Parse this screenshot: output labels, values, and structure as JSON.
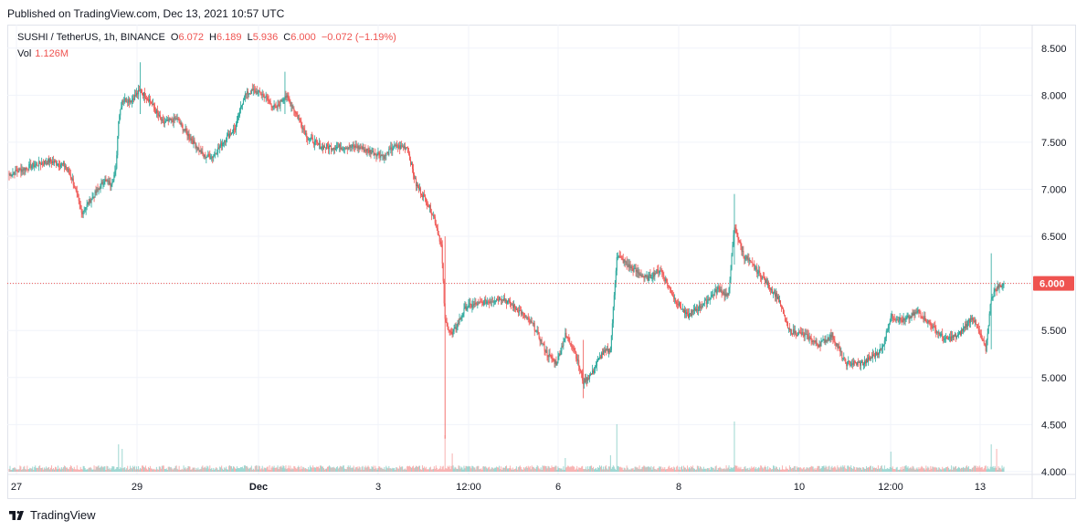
{
  "published": "Published on TradingView.com, Dec 13, 2021 10:57 UTC",
  "legend": {
    "symbol": "SUSHI / TetherUS, 1h, BINANCE",
    "open_label": "O",
    "open": "6.072",
    "high_label": "H",
    "high": "6.189",
    "low_label": "L",
    "low": "5.936",
    "close_label": "C",
    "close": "6.000",
    "change": "−0.072 (−1.19%)"
  },
  "volume": {
    "label": "Vol",
    "value": "1.126M"
  },
  "footer": {
    "brand": "TradingView",
    "logo_icon": "tradingview-logo-icon"
  },
  "colors": {
    "up": "#26a69a",
    "down": "#ef5350",
    "grid": "#f0f3fa",
    "price_line": "#ef5350"
  },
  "chart_data": {
    "type": "candlestick",
    "symbol": "SUSHI / TetherUS",
    "interval": "1h",
    "exchange": "BINANCE",
    "y_axis_ticks": [
      "8.500",
      "8.000",
      "7.500",
      "7.000",
      "6.500",
      "6.000",
      "5.500",
      "5.000",
      "4.500",
      "4.000"
    ],
    "ylim": [
      3.97,
      8.75
    ],
    "x_axis_ticks": [
      "27",
      "29",
      "Dec",
      "3",
      "12:00",
      "6",
      "8",
      "10",
      "12:00",
      "13"
    ],
    "last_price_label": "6.000",
    "grid": true,
    "approx_close_path": [
      {
        "i": 0,
        "close": 7.15
      },
      {
        "i": 10,
        "close": 7.2
      },
      {
        "i": 25,
        "close": 7.25
      },
      {
        "i": 45,
        "close": 7.3
      },
      {
        "i": 62,
        "close": 7.25
      },
      {
        "i": 70,
        "close": 7.1
      },
      {
        "i": 80,
        "close": 6.75
      },
      {
        "i": 95,
        "close": 6.95
      },
      {
        "i": 105,
        "close": 7.1
      },
      {
        "i": 112,
        "close": 7.05
      },
      {
        "i": 118,
        "close": 7.2
      },
      {
        "i": 121,
        "close": 7.75
      },
      {
        "i": 125,
        "close": 7.95
      },
      {
        "i": 135,
        "close": 7.95
      },
      {
        "i": 145,
        "close": 8.05
      },
      {
        "i": 155,
        "close": 7.95
      },
      {
        "i": 170,
        "close": 7.7
      },
      {
        "i": 185,
        "close": 7.75
      },
      {
        "i": 200,
        "close": 7.55
      },
      {
        "i": 215,
        "close": 7.35
      },
      {
        "i": 225,
        "close": 7.35
      },
      {
        "i": 240,
        "close": 7.55
      },
      {
        "i": 250,
        "close": 7.65
      },
      {
        "i": 260,
        "close": 8.0
      },
      {
        "i": 270,
        "close": 8.05
      },
      {
        "i": 282,
        "close": 8.0
      },
      {
        "i": 295,
        "close": 7.85
      },
      {
        "i": 305,
        "close": 8.0
      },
      {
        "i": 315,
        "close": 7.85
      },
      {
        "i": 330,
        "close": 7.55
      },
      {
        "i": 345,
        "close": 7.45
      },
      {
        "i": 365,
        "close": 7.45
      },
      {
        "i": 385,
        "close": 7.45
      },
      {
        "i": 400,
        "close": 7.4
      },
      {
        "i": 415,
        "close": 7.35
      },
      {
        "i": 425,
        "close": 7.45
      },
      {
        "i": 440,
        "close": 7.45
      },
      {
        "i": 450,
        "close": 7.05
      },
      {
        "i": 460,
        "close": 6.9
      },
      {
        "i": 470,
        "close": 6.7
      },
      {
        "i": 478,
        "close": 6.4
      },
      {
        "i": 482,
        "close": 5.6
      },
      {
        "i": 490,
        "close": 5.45
      },
      {
        "i": 505,
        "close": 5.75
      },
      {
        "i": 525,
        "close": 5.8
      },
      {
        "i": 545,
        "close": 5.85
      },
      {
        "i": 565,
        "close": 5.7
      },
      {
        "i": 580,
        "close": 5.55
      },
      {
        "i": 595,
        "close": 5.25
      },
      {
        "i": 605,
        "close": 5.15
      },
      {
        "i": 615,
        "close": 5.45
      },
      {
        "i": 625,
        "close": 5.3
      },
      {
        "i": 635,
        "close": 4.95
      },
      {
        "i": 645,
        "close": 5.05
      },
      {
        "i": 655,
        "close": 5.25
      },
      {
        "i": 665,
        "close": 5.3
      },
      {
        "i": 672,
        "close": 6.3
      },
      {
        "i": 690,
        "close": 6.15
      },
      {
        "i": 705,
        "close": 6.05
      },
      {
        "i": 720,
        "close": 6.15
      },
      {
        "i": 735,
        "close": 5.85
      },
      {
        "i": 750,
        "close": 5.65
      },
      {
        "i": 770,
        "close": 5.8
      },
      {
        "i": 785,
        "close": 5.95
      },
      {
        "i": 795,
        "close": 5.85
      },
      {
        "i": 802,
        "close": 6.6
      },
      {
        "i": 812,
        "close": 6.3
      },
      {
        "i": 830,
        "close": 6.1
      },
      {
        "i": 850,
        "close": 5.85
      },
      {
        "i": 862,
        "close": 5.5
      },
      {
        "i": 880,
        "close": 5.45
      },
      {
        "i": 895,
        "close": 5.35
      },
      {
        "i": 910,
        "close": 5.45
      },
      {
        "i": 925,
        "close": 5.15
      },
      {
        "i": 945,
        "close": 5.15
      },
      {
        "i": 965,
        "close": 5.3
      },
      {
        "i": 975,
        "close": 5.65
      },
      {
        "i": 990,
        "close": 5.6
      },
      {
        "i": 1005,
        "close": 5.7
      },
      {
        "i": 1020,
        "close": 5.55
      },
      {
        "i": 1035,
        "close": 5.4
      },
      {
        "i": 1050,
        "close": 5.45
      },
      {
        "i": 1065,
        "close": 5.65
      },
      {
        "i": 1080,
        "close": 5.3
      },
      {
        "i": 1086,
        "close": 5.85
      },
      {
        "i": 1092,
        "close": 5.95
      },
      {
        "i": 1100,
        "close": 6.0
      }
    ]
  }
}
